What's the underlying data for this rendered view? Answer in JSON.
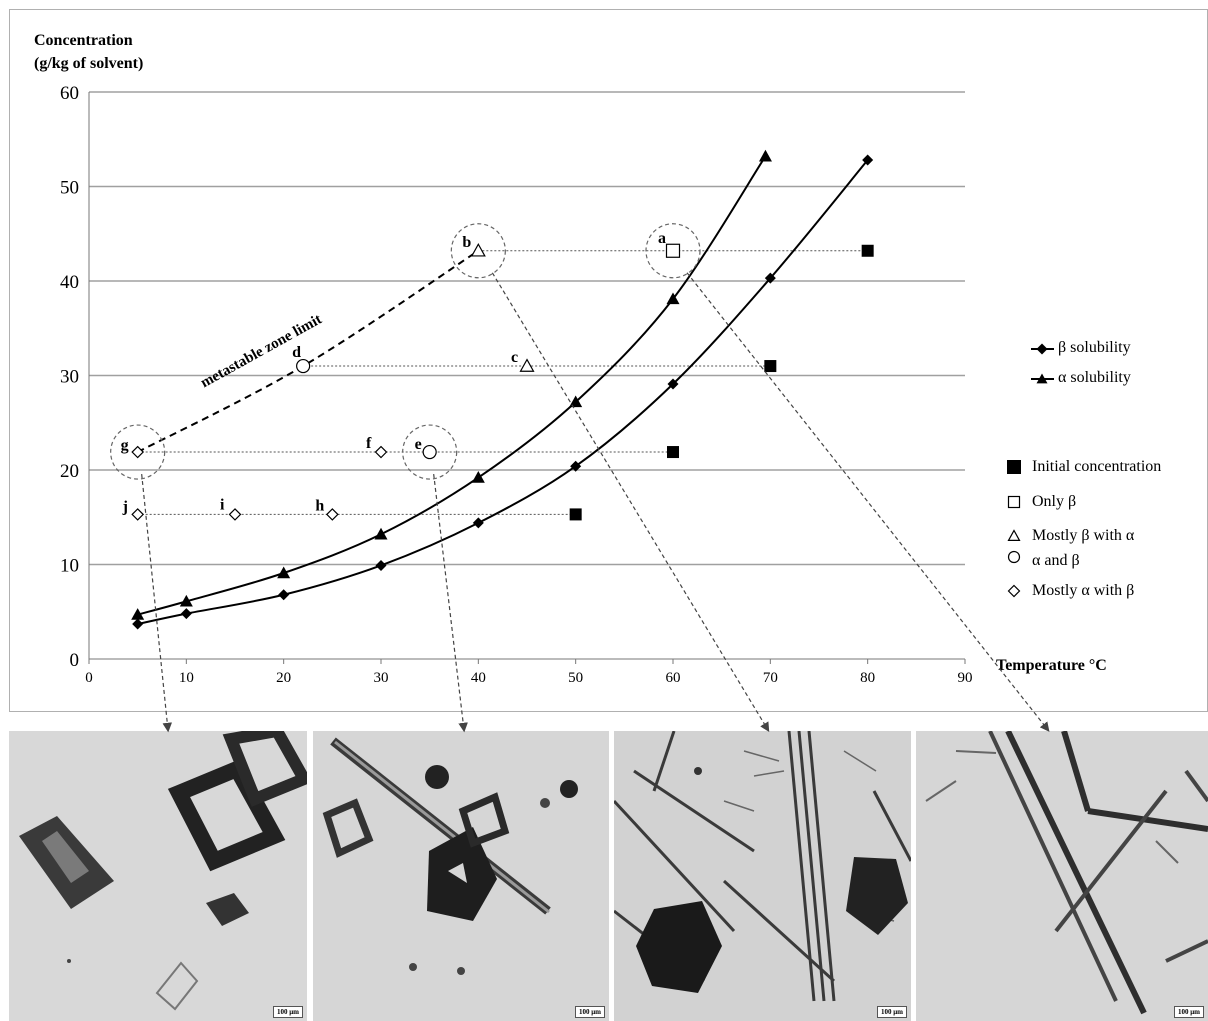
{
  "chart_data": {
    "type": "line",
    "ylabel_lines": [
      "Concentration",
      "(g/kg of solvent)"
    ],
    "xlabel": "Temperature °C",
    "xlim": [
      0,
      90
    ],
    "ylim": [
      0,
      60
    ],
    "xticks": [
      0,
      10,
      20,
      30,
      40,
      50,
      60,
      70,
      80,
      90
    ],
    "yticks": [
      0,
      10,
      20,
      30,
      40,
      50,
      60
    ],
    "grid": "horizontal",
    "series": [
      {
        "name": "β solubility",
        "marker": "diamond",
        "x": [
          5,
          10,
          20,
          30,
          40,
          50,
          60,
          70,
          80
        ],
        "y": [
          3.7,
          4.8,
          6.8,
          9.9,
          14.4,
          20.4,
          29.1,
          40.3,
          52.8
        ]
      },
      {
        "name": "α solubility",
        "marker": "triangle",
        "x": [
          5,
          10,
          20,
          30,
          40,
          50,
          60,
          69.5
        ],
        "y": [
          4.7,
          6.1,
          9.1,
          13.2,
          19.2,
          27.2,
          38.1,
          53.2
        ]
      }
    ],
    "initial_concentration": {
      "x": [
        80,
        70,
        60,
        50
      ],
      "y": [
        43.2,
        31.0,
        21.9,
        15.3
      ]
    },
    "observations": [
      {
        "label": "a",
        "x": 60,
        "y": 43.2,
        "marker": "square-open"
      },
      {
        "label": "b",
        "x": 40,
        "y": 43.2,
        "marker": "triangle-open"
      },
      {
        "label": "c",
        "x": 45,
        "y": 31.0,
        "marker": "triangle-open"
      },
      {
        "label": "d",
        "x": 22,
        "y": 31.0,
        "marker": "circle-open"
      },
      {
        "label": "e",
        "x": 35,
        "y": 21.9,
        "marker": "circle-open"
      },
      {
        "label": "f",
        "x": 30,
        "y": 21.9,
        "marker": "diamond-open"
      },
      {
        "label": "g",
        "x": 5,
        "y": 21.9,
        "marker": "diamond-open"
      },
      {
        "label": "h",
        "x": 25,
        "y": 15.3,
        "marker": "diamond-open"
      },
      {
        "label": "i",
        "x": 15,
        "y": 15.3,
        "marker": "diamond-open"
      },
      {
        "label": "j",
        "x": 5,
        "y": 15.3,
        "marker": "diamond-open"
      }
    ],
    "metastable_zone_limit": {
      "label": "metastable zone limit",
      "x": [
        5,
        22,
        40
      ],
      "y": [
        21.9,
        31.0,
        43.2
      ]
    },
    "highlighted_points": [
      "g",
      "e",
      "b",
      "a"
    ],
    "legend": [
      {
        "label": "β solubility",
        "marker": "diamond"
      },
      {
        "label": "α solubility",
        "marker": "triangle"
      },
      {
        "label": "Initial concentration",
        "marker": "square-filled"
      },
      {
        "label": "Only β",
        "marker": "square-open"
      },
      {
        "label": "Mostly β with α",
        "marker": "triangle-open"
      },
      {
        "label": "α and β",
        "marker": "circle-open"
      },
      {
        "label": "Mostly α with β",
        "marker": "diamond-open"
      }
    ],
    "legend_position": "right"
  },
  "micrographs": [
    {
      "id": "g",
      "scale_label": "100 μm"
    },
    {
      "id": "e",
      "scale_label": "100 μm"
    },
    {
      "id": "b",
      "scale_label": "100 μm"
    },
    {
      "id": "a",
      "scale_label": "100 μm"
    }
  ]
}
